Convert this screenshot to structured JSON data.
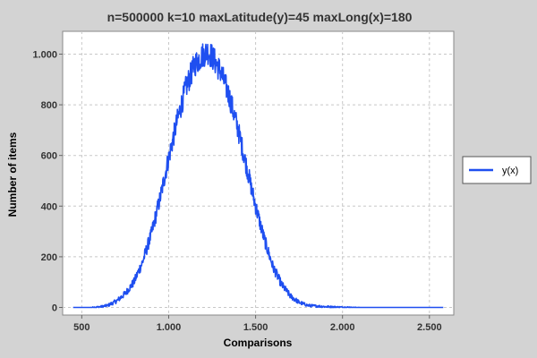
{
  "chart_data": {
    "type": "line",
    "title": "n=500000 k=10 maxLatitude(y)=45 maxLong(x)=180",
    "xlabel": "Comparisons",
    "ylabel": "Number of items",
    "xlim": [
      390,
      2640
    ],
    "ylim": [
      -30,
      1090
    ],
    "x_ticks": [
      500,
      1000,
      1500,
      2000,
      2500
    ],
    "x_tick_labels": [
      "500",
      "1.000",
      "1.500",
      "2.000",
      "2.500"
    ],
    "y_ticks": [
      0,
      200,
      400,
      600,
      800,
      1000
    ],
    "y_tick_labels": [
      "0",
      "200",
      "400",
      "600",
      "800",
      "1.000"
    ],
    "grid": true,
    "legend_position": "right",
    "colors": {
      "series": "#1f4ff0",
      "plot_bg": "#ffffff",
      "page_bg": "#d3d3d3",
      "grid": "#c8c8c8"
    },
    "series": [
      {
        "name": "y(x)",
        "x": [
          450,
          500,
          550,
          600,
          650,
          700,
          750,
          800,
          850,
          900,
          950,
          1000,
          1050,
          1100,
          1150,
          1200,
          1225,
          1250,
          1300,
          1350,
          1400,
          1450,
          1500,
          1550,
          1600,
          1650,
          1700,
          1750,
          1800,
          1900,
          2000,
          2100,
          2200,
          2300,
          2400,
          2500,
          2580
        ],
        "y": [
          0,
          0,
          0,
          2,
          8,
          25,
          55,
          100,
          180,
          290,
          430,
          590,
          740,
          870,
          960,
          1000,
          1010,
          990,
          930,
          830,
          700,
          550,
          400,
          270,
          160,
          90,
          45,
          20,
          8,
          3,
          1,
          0,
          0,
          0,
          0,
          0,
          0
        ]
      }
    ]
  }
}
